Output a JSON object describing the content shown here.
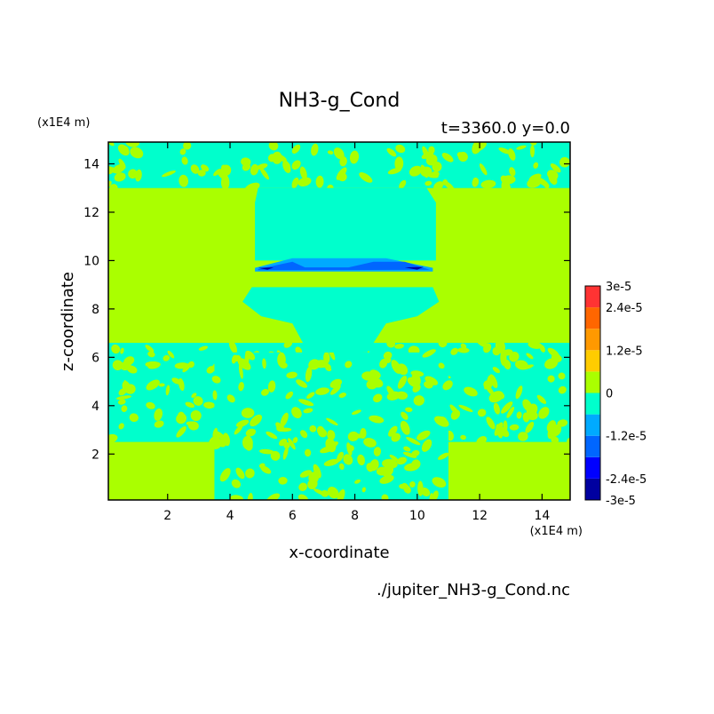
{
  "chart_data": {
    "type": "heatmap",
    "title": "NH3-g_Cond",
    "subtitle": "t=3360.0 y=0.0",
    "xlabel": "x-coordinate",
    "ylabel": "z-coordinate",
    "x_unit": "(x1E4 m)",
    "y_unit": "(x1E4 m)",
    "xlim": [
      0.1,
      14.9
    ],
    "ylim": [
      0.1,
      14.9
    ],
    "x_ticks": [
      2,
      4,
      6,
      8,
      10,
      12,
      14
    ],
    "y_ticks": [
      2,
      4,
      6,
      8,
      10,
      12,
      14
    ],
    "footer": "./jupiter_NH3-g_Cond.nc",
    "colorbar": {
      "labels": [
        "3e-5",
        "2.4e-5",
        "1.2e-5",
        "0",
        "-1.2e-5",
        "-2.4e-5",
        "-3e-5"
      ],
      "label_values": [
        3e-05,
        2.4e-05,
        1.2e-05,
        0,
        -1.2e-05,
        -2.4e-05,
        -3e-05
      ],
      "levels": [
        -3e-05,
        -2.4e-05,
        -1.8e-05,
        -1.2e-05,
        -6e-06,
        0,
        6e-06,
        1.2e-05,
        1.8e-05,
        2.4e-05,
        3e-05
      ],
      "colors": [
        "#0000a0",
        "#0000ff",
        "#0066ff",
        "#00aaff",
        "#00ffcc",
        "#aaff00",
        "#ffcc00",
        "#ff9900",
        "#ff6600",
        "#ff3333"
      ]
    },
    "field": {
      "background_value": 3e-06,
      "regions": [
        {
          "shape": "turbulent",
          "x": [
            0.1,
            14.9
          ],
          "z": [
            13.0,
            14.9
          ],
          "value": -3e-06
        },
        {
          "shape": "turbulent",
          "x": [
            0.1,
            14.9
          ],
          "z": [
            2.5,
            6.6
          ],
          "value": -3e-06
        },
        {
          "shape": "turbulent",
          "x": [
            3.5,
            11.0
          ],
          "z": [
            0.1,
            6.2
          ],
          "value": -3e-06
        },
        {
          "shape": "polygon",
          "value": -3e-06,
          "points": [
            [
              4.9,
              13.0
            ],
            [
              10.3,
              13.0
            ],
            [
              10.6,
              12.4
            ],
            [
              10.6,
              10.0
            ],
            [
              4.8,
              10.0
            ],
            [
              4.8,
              12.4
            ]
          ]
        },
        {
          "shape": "polygon",
          "value": -3e-06,
          "points": [
            [
              4.7,
              8.9
            ],
            [
              10.5,
              8.9
            ],
            [
              10.7,
              8.3
            ],
            [
              10.0,
              7.7
            ],
            [
              9.0,
              7.4
            ],
            [
              8.4,
              6.2
            ],
            [
              6.5,
              6.2
            ],
            [
              6.0,
              7.4
            ],
            [
              5.0,
              7.7
            ],
            [
              4.4,
              8.3
            ]
          ]
        },
        {
          "shape": "polygon",
          "value": -1e-05,
          "points": [
            [
              4.8,
              9.7
            ],
            [
              6.0,
              10.1
            ],
            [
              9.0,
              10.1
            ],
            [
              10.5,
              9.7
            ],
            [
              10.5,
              9.55
            ],
            [
              4.8,
              9.55
            ]
          ]
        },
        {
          "shape": "polygon",
          "value": -1.6e-05,
          "points": [
            [
              4.9,
              9.65
            ],
            [
              6.0,
              9.95
            ],
            [
              6.4,
              9.72
            ],
            [
              7.8,
              9.72
            ],
            [
              8.6,
              9.95
            ],
            [
              9.6,
              9.95
            ],
            [
              10.4,
              9.62
            ],
            [
              4.9,
              9.6
            ]
          ]
        },
        {
          "shape": "polygon",
          "value": -2.8e-05,
          "points": [
            [
              4.9,
              9.7
            ],
            [
              5.4,
              9.72
            ],
            [
              5.2,
              9.62
            ]
          ]
        },
        {
          "shape": "polygon",
          "value": -2.8e-05,
          "points": [
            [
              9.6,
              9.72
            ],
            [
              10.2,
              9.74
            ],
            [
              10.0,
              9.62
            ]
          ]
        }
      ]
    }
  }
}
